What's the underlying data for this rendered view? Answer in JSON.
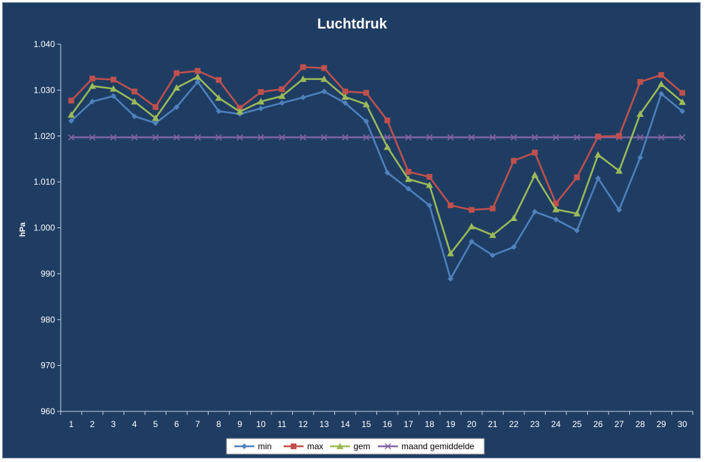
{
  "chart_data": {
    "type": "line",
    "title": "Luchtdruk",
    "xlabel": "",
    "ylabel": "hPa",
    "ylim": [
      960,
      1040
    ],
    "yticks": [
      "960",
      "970",
      "980",
      "990",
      "1.000",
      "1.010",
      "1.020",
      "1.030",
      "1.040"
    ],
    "grid": false,
    "legend_position": "bottom",
    "x": [
      1,
      2,
      3,
      4,
      5,
      6,
      7,
      8,
      9,
      10,
      11,
      12,
      13,
      14,
      15,
      16,
      17,
      18,
      19,
      20,
      21,
      22,
      23,
      24,
      25,
      26,
      27,
      28,
      29,
      30
    ],
    "series": [
      {
        "name": "min",
        "color": "#4f81bd",
        "marker": "diamond",
        "values": [
          1023.3,
          1027.5,
          1028.7,
          1024.3,
          1022.8,
          1026.3,
          1031.8,
          1025.4,
          1024.8,
          1026.0,
          1027.2,
          1028.4,
          1029.7,
          1027.2,
          1023.2,
          1012.0,
          1008.5,
          1004.9,
          988.9,
          997.0,
          994.0,
          995.8,
          1003.5,
          1001.8,
          999.4,
          1010.8,
          1003.9,
          1015.3,
          1029.2,
          1025.4
        ]
      },
      {
        "name": "max",
        "color": "#c0504d",
        "marker": "square",
        "values": [
          1027.7,
          1032.5,
          1032.3,
          1029.7,
          1026.3,
          1033.7,
          1034.2,
          1032.2,
          1026.1,
          1029.6,
          1030.2,
          1035.0,
          1034.8,
          1029.7,
          1029.4,
          1023.4,
          1012.2,
          1011.1,
          1004.9,
          1003.9,
          1004.2,
          1014.6,
          1016.4,
          1005.3,
          1011.0,
          1019.9,
          1020.0,
          1031.8,
          1033.3,
          1029.4
        ]
      },
      {
        "name": "gem",
        "color": "#9bbb59",
        "marker": "triangle",
        "values": [
          1024.6,
          1030.9,
          1030.3,
          1027.5,
          1023.9,
          1030.5,
          1032.9,
          1028.3,
          1025.3,
          1027.5,
          1028.7,
          1032.4,
          1032.4,
          1028.5,
          1026.9,
          1017.6,
          1010.6,
          1009.3,
          994.4,
          1000.3,
          998.4,
          1002.1,
          1011.5,
          1004.0,
          1003.1,
          1015.9,
          1012.4,
          1024.8,
          1031.3,
          1027.4
        ]
      },
      {
        "name": "maand gemiddelde",
        "color": "#8064a2",
        "marker": "x",
        "values": [
          1019.7,
          1019.7,
          1019.7,
          1019.7,
          1019.7,
          1019.7,
          1019.7,
          1019.7,
          1019.7,
          1019.7,
          1019.7,
          1019.7,
          1019.7,
          1019.7,
          1019.7,
          1019.7,
          1019.7,
          1019.7,
          1019.7,
          1019.7,
          1019.7,
          1019.7,
          1019.7,
          1019.7,
          1019.7,
          1019.7,
          1019.7,
          1019.7,
          1019.7,
          1019.7
        ]
      }
    ]
  }
}
